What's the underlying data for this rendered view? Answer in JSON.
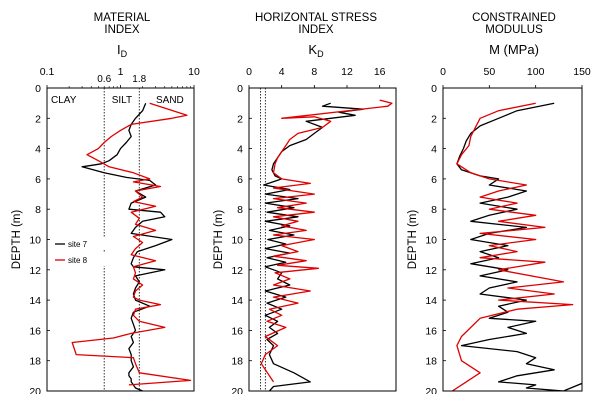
{
  "chart_data": [
    {
      "type": "line",
      "title_lines": [
        "MATERIAL",
        "INDEX"
      ],
      "symbol": "I",
      "symbol_sub": "D",
      "ylabel": "DEPTH (m)",
      "x_scale": "log",
      "xlim": [
        0.1,
        10
      ],
      "ylim": [
        20,
        0
      ],
      "x_ticks": [
        0.1,
        1,
        10
      ],
      "x_tick_labels": [
        "0.1",
        "1",
        "10"
      ],
      "minor_tick_values": [
        0.6,
        1.8
      ],
      "minor_tick_labels": [
        "0.6",
        "1.8"
      ],
      "y_ticks": [
        0,
        2,
        4,
        6,
        8,
        10,
        12,
        14,
        16,
        18,
        20
      ],
      "y_tick_labels": [
        "0",
        "2",
        "4",
        "6",
        "8",
        "10",
        "12",
        "14",
        "16",
        "18",
        "20"
      ],
      "reference_lines_x": [
        0.6,
        1.8
      ],
      "zone_labels": [
        "CLAY",
        "SILT",
        "SAND"
      ],
      "legend": {
        "position": "left-middle",
        "entries": [
          "site 7",
          "site 8"
        ]
      },
      "series": [
        {
          "name": "site 7",
          "color": "#000000",
          "x": [
            2.2,
            2.0,
            1.6,
            1.4,
            1.3,
            1.4,
            1.2,
            1.0,
            0.9,
            0.7,
            0.55,
            0.3,
            0.6,
            1.2,
            2.5,
            3.0,
            1.6,
            2.2,
            1.4,
            1.3,
            3.5,
            4.0,
            2.0,
            1.6,
            1.4,
            5.0,
            3.0,
            1.7,
            1.5,
            1.4,
            1.5,
            4.0,
            1.6,
            1.8,
            1.6,
            1.5,
            1.6,
            2.5,
            1.5,
            1.4,
            1.5,
            1.6,
            1.4,
            1.5,
            1.3,
            1.4,
            1.4,
            1.5,
            1.3,
            1.3,
            1.4,
            1.4,
            1.5,
            1.6,
            2.0
          ],
          "y": [
            1.0,
            1.5,
            2.0,
            2.4,
            2.8,
            3.2,
            3.6,
            4.0,
            4.4,
            4.8,
            5.0,
            5.2,
            5.6,
            5.9,
            6.1,
            6.4,
            6.8,
            7.2,
            7.6,
            8.0,
            8.2,
            8.5,
            8.8,
            9.2,
            9.6,
            10.0,
            10.4,
            10.8,
            11.2,
            11.6,
            11.8,
            12.0,
            12.4,
            12.8,
            13.2,
            13.6,
            14.0,
            14.4,
            14.8,
            15.2,
            15.6,
            16.0,
            16.4,
            16.8,
            17.2,
            17.6,
            18.0,
            18.4,
            18.8,
            19.0,
            19.2,
            19.4,
            19.6,
            19.8,
            20.0
          ]
        },
        {
          "name": "site 8",
          "color": "#e00000",
          "x": [
            2.5,
            8.0,
            5.0,
            1.4,
            1.0,
            0.75,
            0.6,
            0.5,
            0.35,
            0.5,
            0.7,
            1.5,
            2.5,
            1.5,
            3.5,
            1.6,
            2.0,
            1.5,
            3.0,
            1.4,
            1.8,
            1.6,
            3.0,
            1.5,
            2.0,
            1.6,
            1.4,
            3.0,
            1.5,
            1.6,
            1.5,
            2.0,
            1.6,
            1.5,
            1.8,
            3.5,
            1.6,
            1.5,
            1.8,
            4.0,
            1.4,
            0.8,
            0.22,
            0.25,
            1.5,
            1.6,
            1.8,
            9.0,
            1.3
          ],
          "y": [
            1.0,
            1.8,
            2.0,
            2.4,
            2.8,
            3.2,
            3.6,
            4.0,
            4.4,
            4.8,
            5.2,
            5.6,
            6.0,
            6.2,
            6.5,
            6.8,
            7.2,
            7.5,
            7.8,
            8.2,
            8.6,
            9.0,
            9.4,
            9.8,
            10.2,
            10.6,
            11.0,
            11.4,
            11.8,
            12.2,
            12.6,
            13.0,
            13.4,
            13.8,
            14.0,
            14.3,
            14.6,
            15.0,
            15.4,
            15.8,
            16.2,
            16.5,
            16.8,
            17.6,
            17.8,
            18.2,
            18.8,
            19.3,
            19.6
          ]
        }
      ]
    },
    {
      "type": "line",
      "title_lines": [
        "HORIZONTAL STRESS",
        "INDEX"
      ],
      "symbol": "K",
      "symbol_sub": "D",
      "ylabel": "DEPTH (m)",
      "x_scale": "linear",
      "xlim": [
        0,
        18
      ],
      "ylim": [
        20,
        0
      ],
      "x_ticks": [
        0,
        4,
        8,
        12,
        16
      ],
      "x_tick_labels": [
        "0",
        "4",
        "8",
        "12",
        "16"
      ],
      "y_ticks": [
        0,
        2,
        4,
        6,
        8,
        10,
        12,
        14,
        16,
        18,
        20
      ],
      "y_tick_labels": [
        "0",
        "2",
        "4",
        "6",
        "8",
        "10",
        "12",
        "14",
        "16",
        "18",
        "20"
      ],
      "reference_lines_x": [
        1.4,
        2.0
      ],
      "series": [
        {
          "name": "site 7",
          "color": "#000000",
          "x": [
            10,
            9,
            14,
            11,
            13,
            7,
            9,
            8,
            7,
            5,
            4,
            3.5,
            3.0,
            2.8,
            3.2,
            4,
            1.8,
            5,
            2,
            6,
            2,
            5.5,
            2.2,
            6,
            2,
            5,
            2.5,
            5.5,
            2.3,
            4.5,
            2.0,
            5,
            2.2,
            4.5,
            2.0,
            4,
            3.5,
            5,
            2.0,
            4.5,
            2.2,
            4,
            2,
            3.5,
            2.5,
            3.5,
            2.2,
            3,
            2.5,
            3,
            5.5,
            7.5,
            3,
            2.5
          ],
          "y": [
            1.0,
            1.2,
            1.4,
            1.6,
            1.8,
            2.2,
            2.6,
            3.0,
            3.4,
            3.8,
            4.2,
            4.6,
            5.0,
            5.4,
            5.8,
            6.0,
            6.4,
            6.7,
            7.0,
            7.3,
            7.6,
            7.9,
            8.2,
            8.5,
            8.8,
            9.1,
            9.4,
            9.7,
            10.0,
            10.3,
            10.6,
            10.9,
            11.2,
            11.5,
            11.8,
            12.2,
            12.6,
            13.0,
            13.4,
            13.8,
            14.2,
            14.6,
            15.0,
            15.4,
            15.8,
            16.2,
            16.6,
            17.0,
            17.6,
            18.2,
            18.8,
            19.4,
            19.7,
            20.0
          ]
        },
        {
          "name": "site 8",
          "color": "#e00000",
          "x": [
            16,
            17.5,
            17,
            4,
            8,
            10,
            9,
            6,
            5,
            4.5,
            4,
            3.5,
            3.2,
            3.0,
            4,
            7.5,
            3,
            8,
            3,
            7,
            3.5,
            8,
            3,
            6,
            4,
            7,
            3,
            8,
            4,
            6,
            3,
            7,
            3.5,
            8.5,
            3.2,
            5,
            3,
            7.5,
            3,
            6,
            2.5,
            4,
            2.2,
            4.5,
            2,
            3.5,
            2,
            1.5,
            3
          ],
          "y": [
            0.8,
            1.0,
            1.2,
            2.0,
            1.9,
            2.2,
            2.6,
            3.0,
            3.4,
            3.8,
            4.2,
            4.6,
            5.0,
            5.6,
            6.0,
            6.3,
            6.6,
            7.0,
            7.3,
            7.6,
            7.9,
            8.2,
            8.5,
            8.8,
            9.1,
            9.4,
            9.7,
            10.0,
            10.4,
            10.8,
            11.1,
            11.4,
            11.7,
            11.9,
            12.2,
            12.6,
            13.0,
            13.4,
            13.8,
            14.2,
            14.6,
            15.0,
            15.4,
            15.8,
            16.4,
            17.0,
            17.6,
            18.2,
            19.4
          ]
        }
      ]
    },
    {
      "type": "line",
      "title_lines": [
        "CONSTRAINED",
        "MODULUS"
      ],
      "symbol": "M (MPa)",
      "symbol_sub": "",
      "ylabel": "DEPTH (m)",
      "x_scale": "linear",
      "xlim": [
        0,
        150
      ],
      "ylim": [
        20,
        0
      ],
      "x_ticks": [
        0,
        50,
        100,
        150
      ],
      "x_tick_labels": [
        "0",
        "50",
        "100",
        "150"
      ],
      "y_ticks": [
        0,
        2,
        4,
        6,
        8,
        10,
        12,
        14,
        16,
        18,
        20
      ],
      "y_tick_labels": [
        "0",
        "2",
        "4",
        "6",
        "8",
        "10",
        "12",
        "14",
        "16",
        "18",
        "20"
      ],
      "series": [
        {
          "name": "site 7",
          "color": "#000000",
          "x": [
            120,
            80,
            60,
            40,
            30,
            25,
            22,
            18,
            15,
            20,
            40,
            60,
            50,
            90,
            70,
            40,
            80,
            50,
            30,
            90,
            50,
            30,
            70,
            40,
            60,
            30,
            70,
            40,
            80,
            50,
            40,
            90,
            60,
            70,
            50,
            100,
            70,
            90,
            50,
            20,
            80,
            100,
            90,
            120,
            80,
            60,
            100,
            90,
            130,
            150
          ],
          "y": [
            1.0,
            1.5,
            2.0,
            2.5,
            3.0,
            3.5,
            4.0,
            4.5,
            5.0,
            5.4,
            5.8,
            6.0,
            6.4,
            6.8,
            7.2,
            7.6,
            8.0,
            8.4,
            8.8,
            9.2,
            9.6,
            10.0,
            10.4,
            10.8,
            11.2,
            11.6,
            12.0,
            12.4,
            12.8,
            13.2,
            13.6,
            14.0,
            14.4,
            14.8,
            15.2,
            15.4,
            15.8,
            16.2,
            16.6,
            17.0,
            17.4,
            17.8,
            18.2,
            18.6,
            19.0,
            19.4,
            19.6,
            19.8,
            20.0,
            19.5
          ]
        },
        {
          "name": "site 8",
          "color": "#e00000",
          "x": [
            100,
            60,
            40,
            35,
            30,
            28,
            20,
            15,
            30,
            50,
            90,
            60,
            40,
            80,
            50,
            100,
            60,
            110,
            40,
            100,
            50,
            80,
            40,
            110,
            60,
            130,
            70,
            120,
            60,
            140,
            80,
            40,
            20,
            15,
            20,
            40,
            25,
            10
          ],
          "y": [
            1.0,
            1.5,
            2.0,
            2.6,
            3.2,
            3.8,
            4.4,
            5.0,
            5.6,
            6.0,
            6.4,
            6.8,
            7.2,
            7.6,
            8.0,
            8.4,
            8.8,
            9.2,
            9.6,
            10.0,
            10.4,
            10.8,
            11.2,
            11.5,
            12.0,
            12.8,
            13.2,
            13.6,
            14.0,
            14.3,
            14.6,
            15.2,
            16.4,
            17.0,
            18.0,
            18.8,
            19.4,
            20.0
          ]
        }
      ]
    }
  ]
}
